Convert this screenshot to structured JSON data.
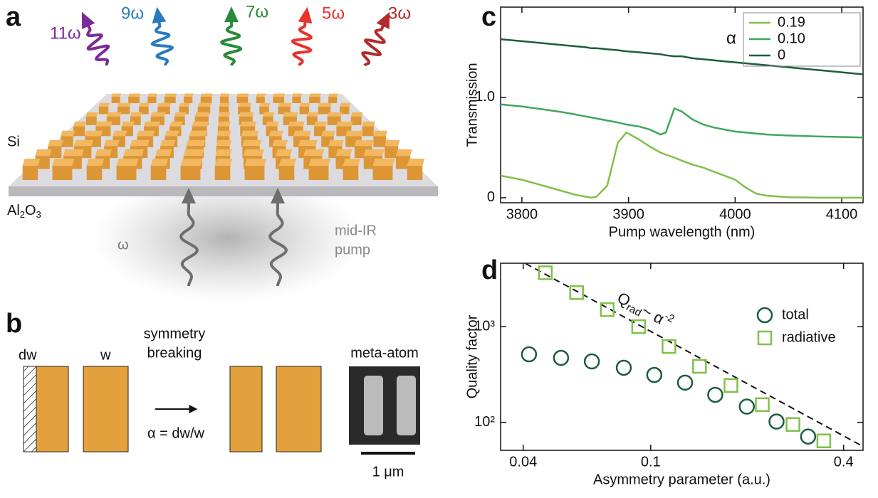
{
  "panel_labels": [
    "a",
    "b",
    "c",
    "d"
  ],
  "panel_a": {
    "harmonics": [
      {
        "label": "11ω",
        "color": "#7b2a9a"
      },
      {
        "label": "9ω",
        "color": "#2a7ac0"
      },
      {
        "label": "7ω",
        "color": "#2a8a3a"
      },
      {
        "label": "5ω",
        "color": "#e8322c"
      },
      {
        "label": "3ω",
        "color": "#b42a2a"
      }
    ],
    "top_material": "Si",
    "substrate": [
      "Al",
      "2",
      "O",
      "3"
    ],
    "pump_symbol": "ω",
    "pump_label": [
      "mid-IR",
      "pump"
    ]
  },
  "panel_b": {
    "dw": "dw",
    "w": "w",
    "arrow_label": [
      "symmetry",
      "breaking"
    ],
    "definition": "α = dw/w",
    "image_label": "meta-atom",
    "scale_bar": "1 μm"
  },
  "chart_data": [
    {
      "type": "line",
      "xlabel": "Pump wavelength (nm)",
      "ylabel": "Transmission",
      "x": [
        3780,
        3800,
        3820,
        3840,
        3850,
        3860,
        3865,
        3870,
        3880,
        3890,
        3898,
        3910,
        3920,
        3930,
        3935,
        3943,
        3950,
        3960,
        3970,
        3980,
        3990,
        4000,
        4010,
        4020,
        4030,
        4050,
        4080,
        4120
      ],
      "series": [
        {
          "name": "0.19",
          "color": "#80c04a",
          "values": [
            0.22,
            0.18,
            0.12,
            0.06,
            0.03,
            0.01,
            0,
            0.01,
            0.12,
            0.55,
            0.65,
            0.58,
            0.51,
            0.45,
            0.43,
            0.4,
            0.37,
            0.33,
            0.3,
            0.26,
            0.22,
            0.18,
            0.1,
            0.04,
            0.02,
            0.005,
            0,
            0
          ]
        },
        {
          "name": "0.10",
          "color": "#3fa75a",
          "values": [
            0.93,
            0.91,
            0.88,
            0.85,
            0.83,
            0.81,
            0.8,
            0.79,
            0.77,
            0.75,
            0.73,
            0.71,
            0.68,
            0.63,
            0.65,
            0.89,
            0.86,
            0.78,
            0.73,
            0.7,
            0.68,
            0.66,
            0.65,
            0.64,
            0.63,
            0.62,
            0.61,
            0.6
          ]
        },
        {
          "name": "0",
          "color": "#1b5e3b",
          "values": [
            1.58,
            1.56,
            1.54,
            1.52,
            1.51,
            1.5,
            1.49,
            1.49,
            1.48,
            1.47,
            1.46,
            1.45,
            1.44,
            1.43,
            1.42,
            1.41,
            1.41,
            1.39,
            1.38,
            1.37,
            1.36,
            1.35,
            1.34,
            1.33,
            1.32,
            1.3,
            1.27,
            1.23
          ]
        }
      ],
      "legend_title": "α",
      "legend": "upper right",
      "xlim": [
        3780,
        4120
      ],
      "ylim": [
        -0.05,
        1.9
      ],
      "xticks": [
        3800,
        3900,
        4000,
        4100
      ],
      "yticks": [
        0,
        {
          "value": 1,
          "label": "1.0"
        }
      ]
    },
    {
      "type": "scatter",
      "xlabel": "Asymmetry parameter (a.u.)",
      "ylabel": "Quality factor",
      "xlog": true,
      "ylog": true,
      "series": [
        {
          "name": "total",
          "color": "#1b5e3b",
          "marker": "circle",
          "x": [
            0.0417,
            0.0525,
            0.0655,
            0.0824,
            0.1026,
            0.128,
            0.159,
            0.1995,
            0.247,
            0.31
          ],
          "values": [
            514,
            472,
            433,
            372,
            313,
            260,
            194,
            146,
            102,
            71
          ]
        },
        {
          "name": "radiative",
          "color": "#80c04a",
          "marker": "square",
          "x": [
            0.0469,
            0.0587,
            0.0732,
            0.0917,
            0.114,
            0.142,
            0.178,
            0.223,
            0.278,
            0.347
          ],
          "values": [
            3653,
            2268,
            1506,
            1000,
            621,
            385,
            243,
            153,
            95,
            64
          ]
        }
      ],
      "fit_line": {
        "x": [
          0.0407,
          0.46
        ],
        "values": [
          4560,
          56
        ]
      },
      "annotation": [
        "Q",
        "rad",
        "~ α",
        "-2"
      ],
      "legend": "upper right",
      "xlim": [
        0.034,
        0.46
      ],
      "ylim": [
        51,
        4600
      ],
      "xticks": [
        0.04,
        0.1,
        0.4
      ],
      "yticks": [
        {
          "value": 100,
          "label": "10²"
        },
        {
          "value": 1000,
          "label": "10³"
        }
      ]
    }
  ]
}
